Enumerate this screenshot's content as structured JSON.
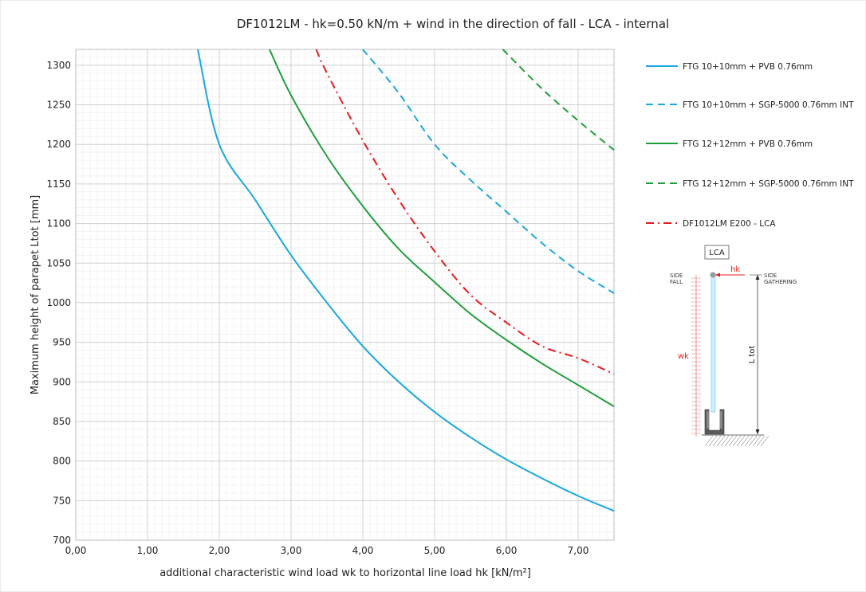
{
  "chart_data": {
    "type": "line",
    "title": "DF1012LM - hk=0.50 kN/m + wind in the direction of fall - LCA - internal",
    "xlabel": "additional characteristic wind load wk to horizontal line load hk [kN/m²]",
    "ylabel": "Maximum height of parapet Ltot [mm]",
    "xlim": [
      0,
      7.5
    ],
    "ylim": [
      700,
      1320
    ],
    "x_ticks": [
      "0,00",
      "1,00",
      "2,00",
      "3,00",
      "4,00",
      "5,00",
      "6,00",
      "7,00"
    ],
    "y_ticks": [
      "700",
      "750",
      "800",
      "850",
      "900",
      "950",
      "1000",
      "1050",
      "1100",
      "1150",
      "1200",
      "1250",
      "1300"
    ],
    "grid": true,
    "legend_position": "right",
    "series": [
      {
        "name": "FTG 10+10mm + PVB 0.76mm",
        "color": "#1aa7e0",
        "dash": "solid",
        "x": [
          1.7,
          2.0,
          2.5,
          3.0,
          3.5,
          4.0,
          4.5,
          5.0,
          5.5,
          6.0,
          6.5,
          7.0,
          7.5
        ],
        "y": [
          1320,
          1200,
          1130,
          1060,
          1000,
          945,
          900,
          862,
          830,
          802,
          778,
          756,
          737
        ]
      },
      {
        "name": "FTG 10+10mm + SGP-5000 0.76mm INT",
        "color": "#1aa7e0",
        "dash": "dashed",
        "x": [
          4.0,
          4.5,
          5.0,
          5.5,
          6.0,
          6.5,
          7.0,
          7.5
        ],
        "y": [
          1320,
          1265,
          1200,
          1155,
          1115,
          1075,
          1040,
          1012
        ]
      },
      {
        "name": "FTG 12+12mm + PVB 0.76mm",
        "color": "#1f9e3a",
        "dash": "solid",
        "x": [
          2.7,
          3.0,
          3.5,
          4.0,
          4.5,
          5.0,
          5.5,
          6.0,
          6.5,
          7.0,
          7.5
        ],
        "y": [
          1320,
          1262,
          1185,
          1122,
          1068,
          1026,
          986,
          953,
          923,
          896,
          869
        ]
      },
      {
        "name": "FTG 12+12mm + SGP-5000 0.76mm INT",
        "color": "#1f9e3a",
        "dash": "dashed",
        "x": [
          5.95,
          6.5,
          7.0,
          7.5
        ],
        "y": [
          1320,
          1270,
          1230,
          1193
        ]
      },
      {
        "name": "DF1012LM E200 - LCA",
        "color": "#e8191c",
        "dash": "dashdot",
        "x": [
          3.35,
          3.5,
          4.0,
          4.5,
          5.0,
          5.5,
          6.0,
          6.5,
          7.0,
          7.5
        ],
        "y": [
          1320,
          1290,
          1205,
          1130,
          1065,
          1010,
          975,
          945,
          930,
          910
        ]
      }
    ]
  },
  "inset": {
    "box_label": "LCA",
    "hk_label": "hk",
    "side_fall_label_1": "SIDE",
    "side_fall_label_2": "FALL",
    "side_gathering_label_1": "SIDE",
    "side_gathering_label_2": "GATHERING",
    "wk_label": "wk",
    "ltot_label": "L tot"
  }
}
